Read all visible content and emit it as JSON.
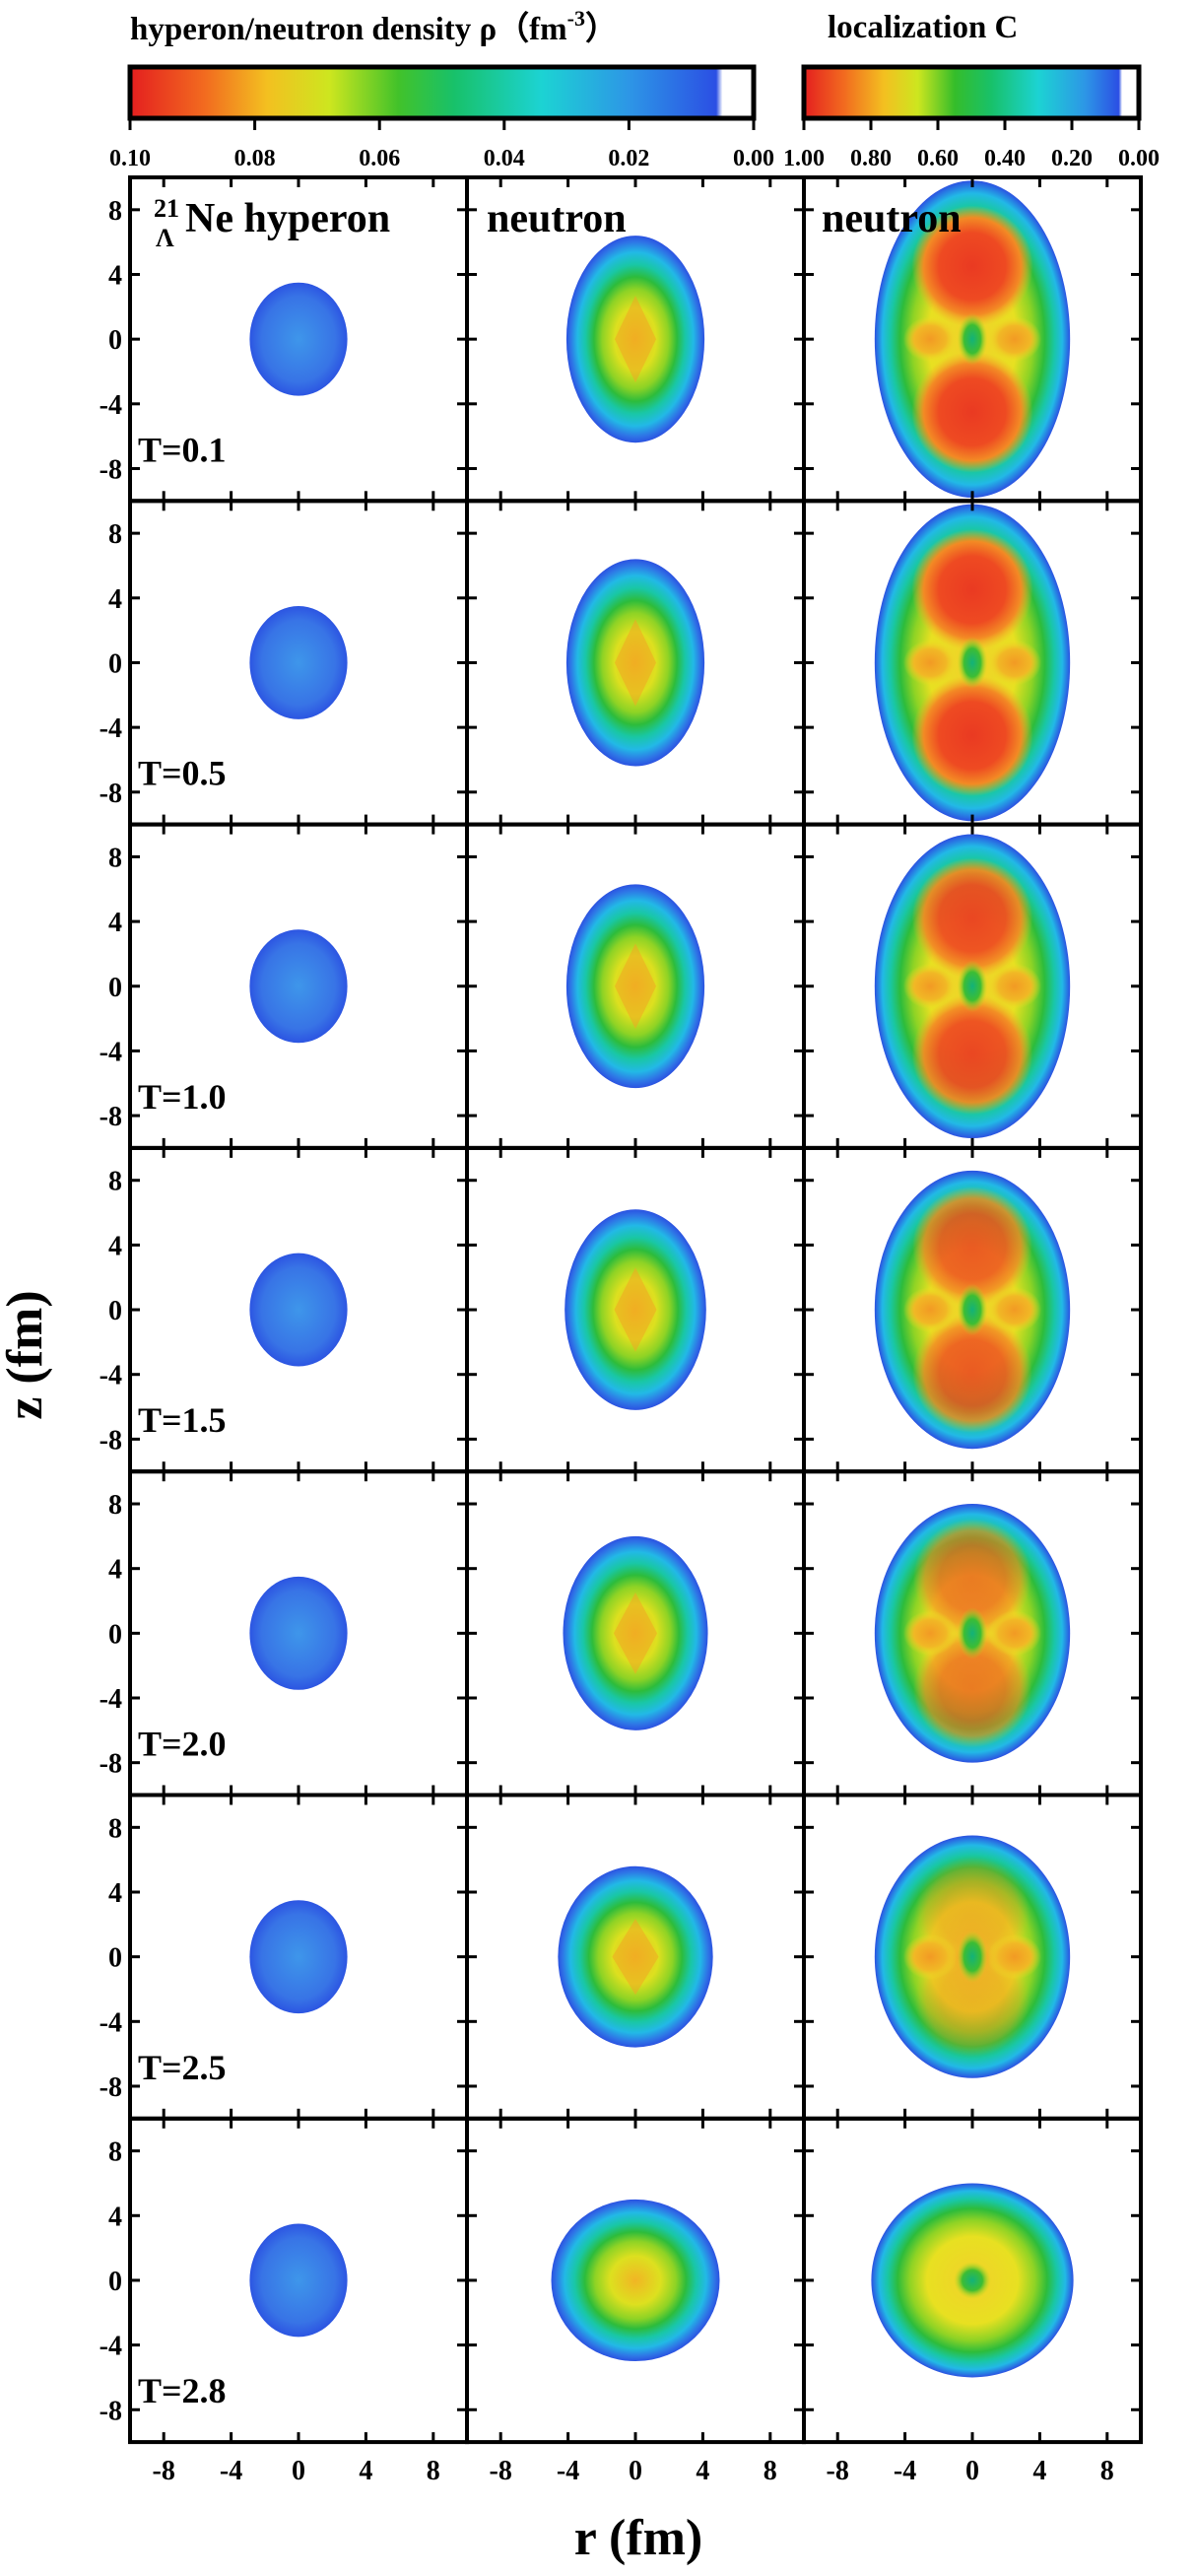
{
  "chart_data": {
    "type": "heatmap",
    "xlabel": "r (fm)",
    "ylabel": "z (fm)",
    "xlim": [
      -10,
      10
    ],
    "ylim": [
      -10,
      10
    ],
    "x_ticks": [
      "-8",
      "-4",
      "0",
      "4",
      "8"
    ],
    "y_ticks": [
      "8",
      "4",
      "0",
      "-4",
      "-8"
    ],
    "tick_values": [
      -8,
      -4,
      0,
      4,
      8
    ],
    "density_colorbar": {
      "title": "hyperon/neutron density ρ（fm",
      "title_sup": "-3",
      "title_end": "）",
      "range": [
        0.1,
        0.0
      ],
      "tick_labels": [
        "0.10",
        "0.08",
        "0.06",
        "0.04",
        "0.02",
        "0.00"
      ],
      "tick_values": [
        0.1,
        0.08,
        0.06,
        0.04,
        0.02,
        0.0
      ]
    },
    "localization_colorbar": {
      "title": "localization C",
      "range": [
        1.0,
        0.0
      ],
      "tick_labels": [
        "1.00",
        "0.80",
        "0.60",
        "0.40",
        "0.20",
        "0.00"
      ],
      "tick_values": [
        1.0,
        0.8,
        0.6,
        0.4,
        0.2,
        0.0
      ]
    },
    "columns": [
      {
        "title_super": "21",
        "title_sub": "Λ",
        "title": "Ne hyperon",
        "quantity": "hyperon density ρ"
      },
      {
        "title": "neutron",
        "quantity": "neutron density ρ"
      },
      {
        "title": "neutron",
        "quantity": "localization C"
      }
    ],
    "rows": [
      {
        "label": "T=0.1",
        "T": 0.1
      },
      {
        "label": "T=0.5",
        "T": 0.5
      },
      {
        "label": "T=1.0",
        "T": 1.0
      },
      {
        "label": "T=1.5",
        "T": 1.5
      },
      {
        "label": "T=2.0",
        "T": 2.0
      },
      {
        "label": "T=2.5",
        "T": 2.5
      },
      {
        "label": "T=2.8",
        "T": 2.8
      }
    ],
    "hyperon": [
      {
        "T": 0.1,
        "extent_r": 2.9,
        "extent_z": 3.5,
        "rho_peak": 0.02
      },
      {
        "T": 0.5,
        "extent_r": 2.9,
        "extent_z": 3.5,
        "rho_peak": 0.02
      },
      {
        "T": 1.0,
        "extent_r": 2.9,
        "extent_z": 3.5,
        "rho_peak": 0.02
      },
      {
        "T": 1.5,
        "extent_r": 2.9,
        "extent_z": 3.5,
        "rho_peak": 0.02
      },
      {
        "T": 2.0,
        "extent_r": 2.9,
        "extent_z": 3.5,
        "rho_peak": 0.02
      },
      {
        "T": 2.5,
        "extent_r": 2.9,
        "extent_z": 3.5,
        "rho_peak": 0.02
      },
      {
        "T": 2.8,
        "extent_r": 2.9,
        "extent_z": 3.5,
        "rho_peak": 0.02
      }
    ],
    "neutron_density": [
      {
        "T": 0.1,
        "extent_r": 4.1,
        "extent_z": 6.4,
        "rho_center": 0.085
      },
      {
        "T": 0.5,
        "extent_r": 4.1,
        "extent_z": 6.4,
        "rho_center": 0.085
      },
      {
        "T": 1.0,
        "extent_r": 4.1,
        "extent_z": 6.3,
        "rho_center": 0.085
      },
      {
        "T": 1.5,
        "extent_r": 4.2,
        "extent_z": 6.2,
        "rho_center": 0.08
      },
      {
        "T": 2.0,
        "extent_r": 4.3,
        "extent_z": 6.0,
        "rho_center": 0.078
      },
      {
        "T": 2.5,
        "extent_r": 4.6,
        "extent_z": 5.6,
        "rho_center": 0.075
      },
      {
        "T": 2.8,
        "extent_r": 5.0,
        "extent_z": 5.0,
        "rho_center": 0.075
      }
    ],
    "neutron_localization": [
      {
        "T": 0.1,
        "extent_r": 5.8,
        "extent_z": 9.8,
        "C_lobe": 1.0,
        "lobe_z": 4.5
      },
      {
        "T": 0.5,
        "extent_r": 5.8,
        "extent_z": 9.8,
        "C_lobe": 1.0,
        "lobe_z": 4.5
      },
      {
        "T": 1.0,
        "extent_r": 5.8,
        "extent_z": 9.4,
        "C_lobe": 0.98,
        "lobe_z": 4.2
      },
      {
        "T": 1.5,
        "extent_r": 5.8,
        "extent_z": 8.6,
        "C_lobe": 0.95,
        "lobe_z": 3.9
      },
      {
        "T": 2.0,
        "extent_r": 5.8,
        "extent_z": 8.0,
        "C_lobe": 0.9,
        "lobe_z": 3.4
      },
      {
        "T": 2.5,
        "extent_r": 5.8,
        "extent_z": 7.5,
        "C_lobe": 0.8,
        "lobe_z": 2.6
      },
      {
        "T": 2.8,
        "extent_r": 6.0,
        "extent_z": 6.0,
        "C_lobe": 0.8,
        "lobe_z": 0.0
      }
    ]
  }
}
